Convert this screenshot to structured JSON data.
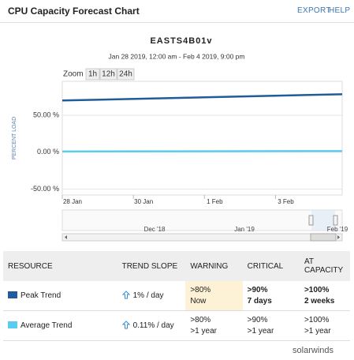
{
  "header": {
    "title": "CPU Capacity Forecast Chart",
    "links": [
      "EXPORT",
      "HELP"
    ]
  },
  "zoom": {
    "label": "Zoom",
    "buttons": [
      "1h",
      "12h",
      "24h"
    ]
  },
  "chart_data": {
    "type": "line",
    "title": "EASTS4B01v",
    "subtitle": "Jan 28 2019, 12:00 am - Feb 4 2019, 9:00 pm",
    "y_label": "PERCENT LOAD",
    "x": [
      "2019-01-28T00:00",
      "2019-02-04T21:00"
    ],
    "series": [
      {
        "name": "Peak Trend",
        "color": "#1f5c99",
        "values": [
          70,
          78.5
        ]
      },
      {
        "name": "Average Trend",
        "color": "#5ccbf0",
        "values": [
          1,
          1.5
        ]
      }
    ],
    "xlim": [
      "2019-01-28T00:00",
      "2019-02-04T21:00"
    ],
    "xticks": [
      {
        "value": "2019-01-28T00:00",
        "label": "28 Jan"
      },
      {
        "value": "2019-01-30T00:00",
        "label": "30 Jan"
      },
      {
        "value": "2019-02-01T00:00",
        "label": "1 Feb"
      },
      {
        "value": "2019-02-03T00:00",
        "label": "3 Feb"
      }
    ],
    "ylim": [
      -58,
      96
    ],
    "yticks": [
      {
        "value": 50,
        "label": "50.00 %"
      },
      {
        "value": 0,
        "label": "0.00 %"
      },
      {
        "value": -50,
        "label": "-50.00 %"
      }
    ],
    "grid": true
  },
  "navigator": {
    "labels": [
      "Dec '18",
      "Jan '19",
      "Feb '19"
    ]
  },
  "table": {
    "columns": [
      "RESOURCE",
      "TREND SLOPE",
      "WARNING",
      "CRITICAL",
      "AT CAPACITY"
    ],
    "rows": [
      {
        "slope": "1% / day",
        "warning": [
          ">80%",
          "Now"
        ],
        "critical": [
          ">90%",
          "7 days"
        ],
        "capacity": [
          ">100%",
          "2 weeks"
        ]
      },
      {
        "slope": "0.11% / day",
        "warning": [
          ">80%",
          ">1 year"
        ],
        "critical": [
          ">90%",
          ">1 year"
        ],
        "capacity": [
          ">100%",
          ">1 year"
        ]
      }
    ]
  },
  "footer": {
    "brand": "solarwinds"
  }
}
